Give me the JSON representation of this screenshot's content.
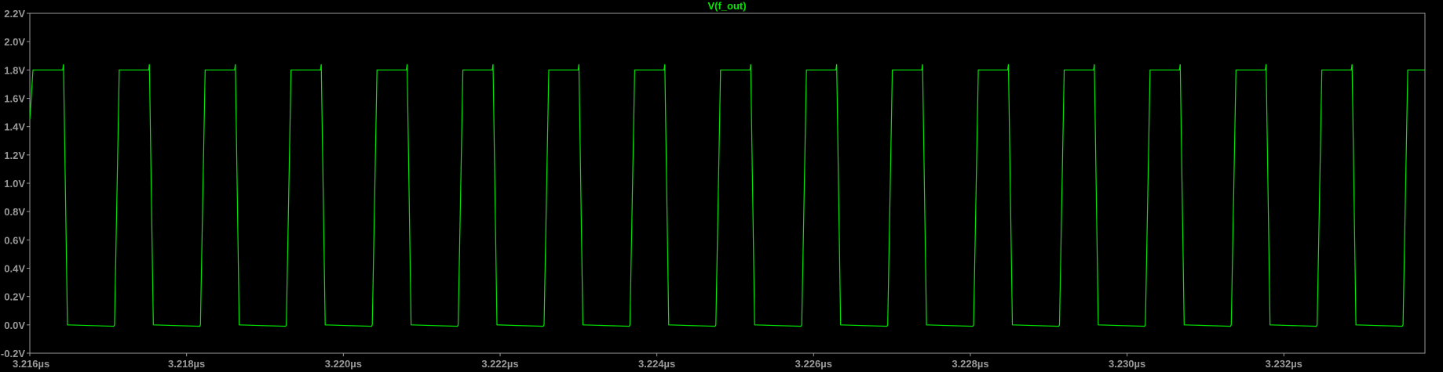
{
  "colors": {
    "background": "#000000",
    "frame": "#9a9a9a",
    "trace": "#00e600",
    "tick_label": "#9a9a9a"
  },
  "chart_data": {
    "type": "line",
    "title": "V(f_out)",
    "xlabel": "",
    "ylabel": "",
    "xlim": [
      3.216,
      3.2338
    ],
    "ylim": [
      -0.2,
      2.2
    ],
    "x_unit": "µs",
    "y_unit": "V",
    "grid": false,
    "legend": "none",
    "x_ticks": [
      "3.216µs",
      "3.218µs",
      "3.220µs",
      "3.222µs",
      "3.224µs",
      "3.226µs",
      "3.228µs",
      "3.230µs",
      "3.232µs"
    ],
    "y_ticks": [
      "2.2V",
      "2.0V",
      "1.8V",
      "1.6V",
      "1.4V",
      "1.2V",
      "1.0V",
      "0.8V",
      "0.6V",
      "0.4V",
      "0.2V",
      "0.0V",
      "-0.2V"
    ],
    "square_wave": {
      "high": 1.8,
      "low": 0.0,
      "period": 0.001015,
      "high_time": 0.000375,
      "edge_time": 6e-05,
      "first_fall": 3.21642,
      "end": 3.2338
    }
  }
}
